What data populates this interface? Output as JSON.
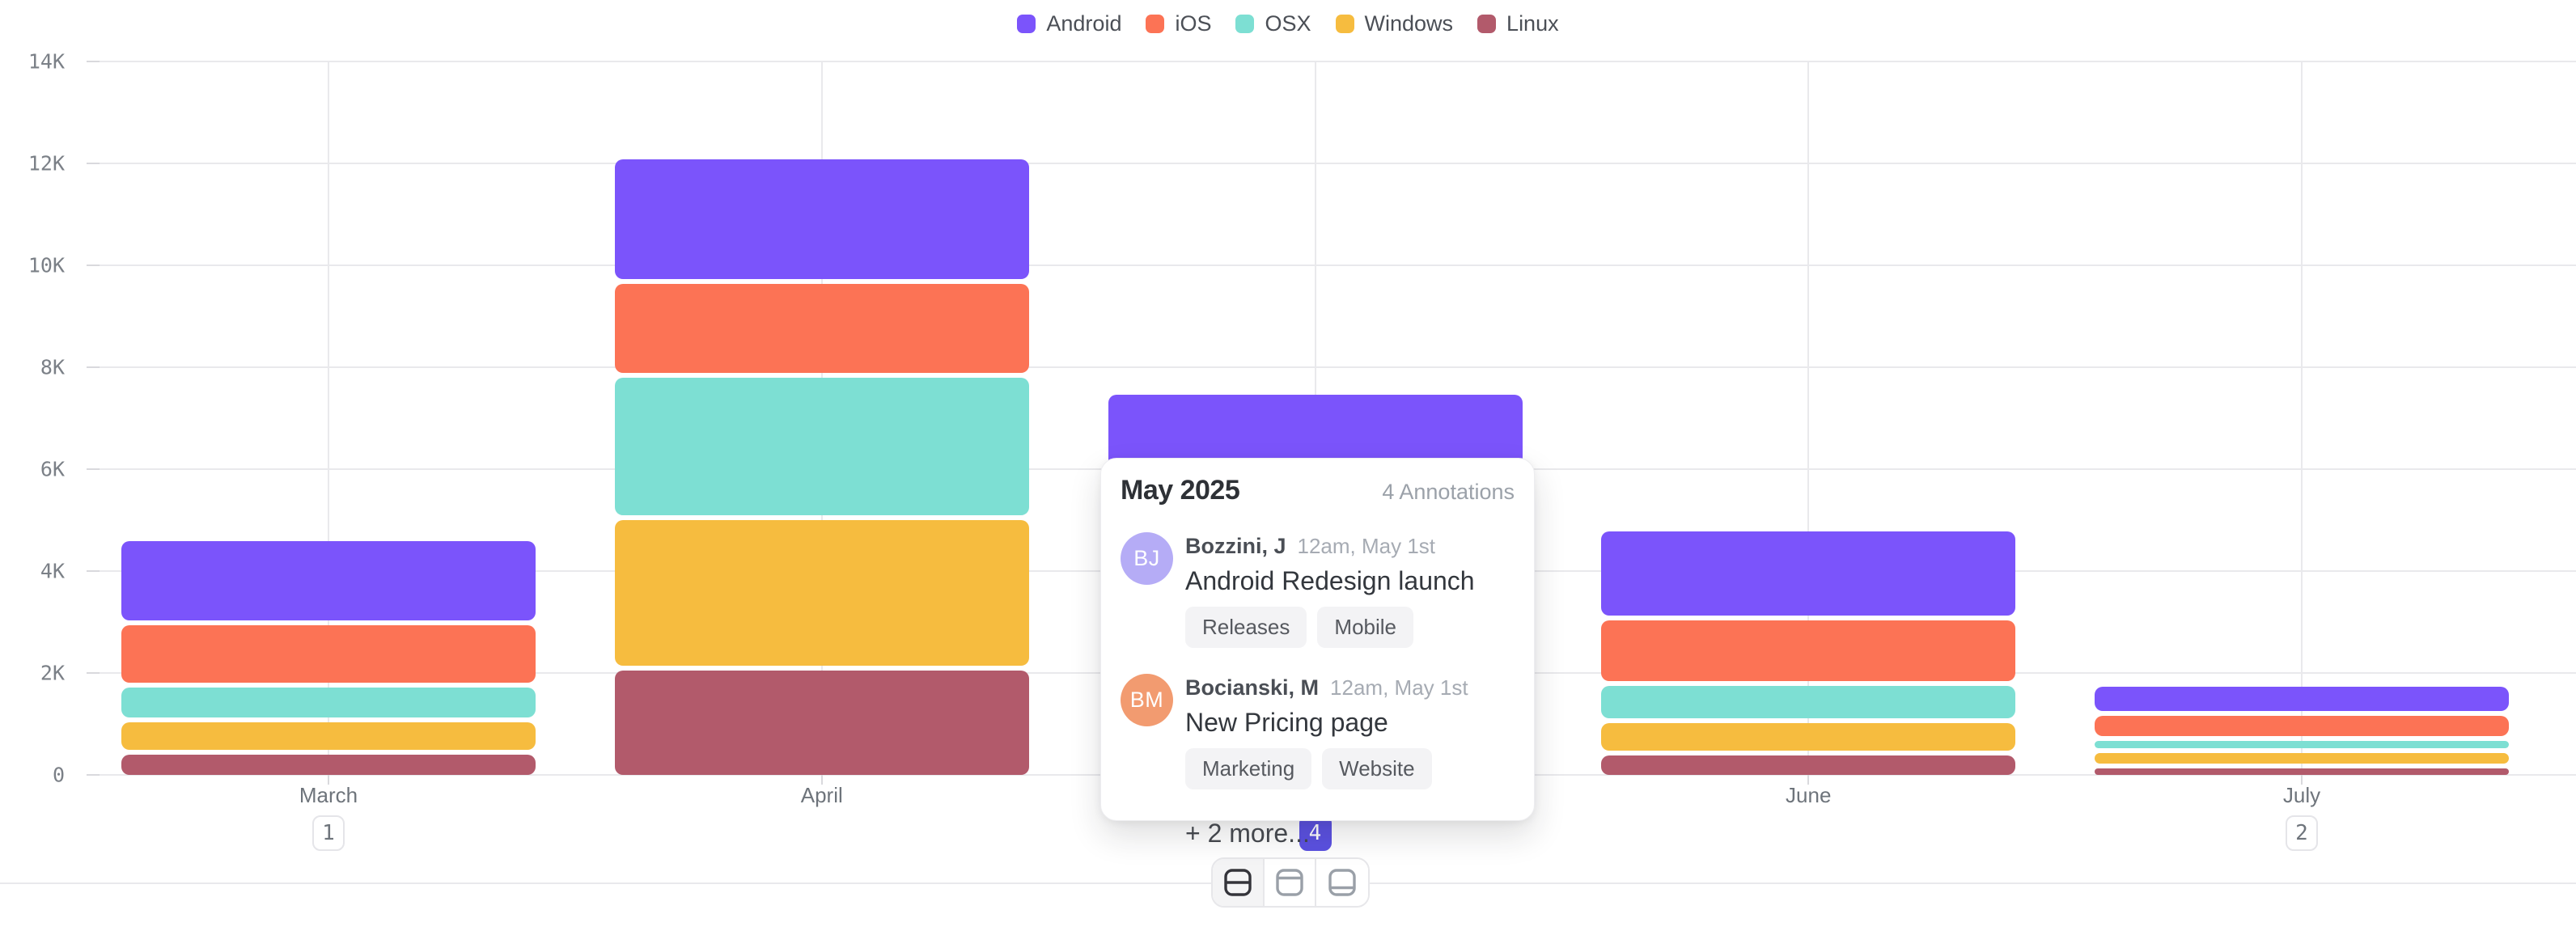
{
  "chart_data": {
    "type": "bar",
    "subtype": "stacked-vertical",
    "title": "",
    "xlabel": "",
    "ylabel": "",
    "ylim": [
      0,
      14000
    ],
    "grid": true,
    "legend_position": "top-center",
    "y_tick_labels": [
      "0",
      "2K",
      "4K",
      "6K",
      "8K",
      "10K",
      "12K",
      "14K"
    ],
    "y_tick_values": [
      0,
      2000,
      4000,
      6000,
      8000,
      10000,
      12000,
      14000
    ],
    "categories": [
      "March",
      "April",
      "May",
      "June",
      "July"
    ],
    "series": [
      {
        "name": "Android",
        "color": "#7b54fb",
        "values": [
          1550,
          2350,
          1850,
          1650,
          470
        ]
      },
      {
        "name": "iOS",
        "color": "#fc7355",
        "values": [
          1130,
          1750,
          1480,
          1200,
          400
        ]
      },
      {
        "name": "OSX",
        "color": "#7ddfd3",
        "values": [
          580,
          2700,
          1380,
          630,
          150
        ]
      },
      {
        "name": "Windows",
        "color": "#f6bc3f",
        "values": [
          540,
          2850,
          1450,
          540,
          200
        ]
      },
      {
        "name": "Linux",
        "color": "#b25a6b",
        "values": [
          400,
          2050,
          920,
          380,
          130
        ]
      }
    ],
    "months": [
      {
        "label": "March",
        "badge": "1",
        "badge_active": false
      },
      {
        "label": "April",
        "badge": null,
        "badge_active": false
      },
      {
        "label": "May",
        "badge": "4",
        "badge_active": true
      },
      {
        "label": "June",
        "badge": null,
        "badge_active": false
      },
      {
        "label": "July",
        "badge": "2",
        "badge_active": false
      }
    ]
  },
  "tooltip": {
    "title": "May 2025",
    "count_label": "4 Annotations",
    "items": [
      {
        "initials": "BJ",
        "avatar_color": "#b5acf6",
        "author": "Bozzini, J",
        "time": "12am, May 1st",
        "title": "Android Redesign launch",
        "tags": [
          "Releases",
          "Mobile"
        ]
      },
      {
        "initials": "BM",
        "avatar_color": "#f29b70",
        "author": "Bocianski, M",
        "time": "12am, May 1st",
        "title": "New Pricing page",
        "tags": [
          "Marketing",
          "Website"
        ]
      }
    ],
    "more_label": "+ 2 more..."
  },
  "toolbar": {
    "buttons": [
      {
        "icon": "panel-split-middle-icon",
        "line": "middle",
        "active": true
      },
      {
        "icon": "panel-line-top-icon",
        "line": "top",
        "active": false
      },
      {
        "icon": "panel-line-bottom-icon",
        "line": "bottom",
        "active": false
      }
    ]
  },
  "colors": {
    "active_badge": "#5b51e1",
    "gridline": "#e9e9ec",
    "axis_text": "#7b8087",
    "month_text": "#6e747b"
  }
}
